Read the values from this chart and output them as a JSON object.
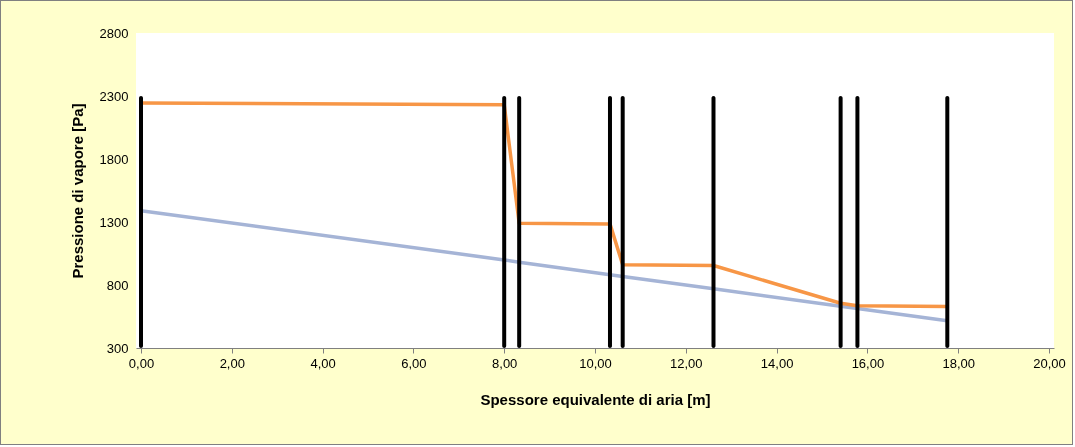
{
  "chart_data": {
    "type": "line",
    "xlabel": "Spessore equivalente di aria [m]",
    "ylabel": "Pressione di vapore [Pa]",
    "xlim": [
      0,
      20
    ],
    "xticks": [
      {
        "value": 0,
        "label": "0,00"
      },
      {
        "value": 2,
        "label": "2,00"
      },
      {
        "value": 4,
        "label": "4,00"
      },
      {
        "value": 6,
        "label": "6,00"
      },
      {
        "value": 8,
        "label": "8,00"
      },
      {
        "value": 10,
        "label": "10,00"
      },
      {
        "value": 12,
        "label": "12,00"
      },
      {
        "value": 14,
        "label": "14,00"
      },
      {
        "value": 16,
        "label": "16,00"
      },
      {
        "value": 18,
        "label": "18,00"
      },
      {
        "value": 20,
        "label": "20,00"
      }
    ],
    "ylim": [
      300,
      2800
    ],
    "yticks": [
      300,
      800,
      1300,
      1800,
      2300,
      2800
    ],
    "series": [
      {
        "color": "#a5b4d6",
        "x": [
          0,
          8.0,
          8.33,
          10.33,
          10.61,
          12.61,
          15.41,
          15.78,
          17.76
        ],
        "values": [
          1390,
          999,
          981,
          882,
          868,
          770,
          632,
          614,
          517
        ]
      },
      {
        "color": "#f79646",
        "x": [
          0,
          8.0,
          8.33,
          10.33,
          10.61,
          12.61,
          15.41,
          15.78,
          17.76
        ],
        "values": [
          2245,
          2230,
          1290,
          1285,
          960,
          955,
          655,
          635,
          630
        ]
      },
      {
        "type": "bar",
        "color": "#000000",
        "x": [
          0,
          8.0,
          8.33,
          10.33,
          10.61,
          12.61,
          15.41,
          15.78,
          17.76
        ],
        "base": [
          300,
          300,
          300,
          300,
          300,
          300,
          300,
          300,
          300
        ],
        "values": [
          2000,
          2000,
          2000,
          2000,
          2000,
          2000,
          2000,
          2000,
          2000
        ]
      }
    ]
  }
}
